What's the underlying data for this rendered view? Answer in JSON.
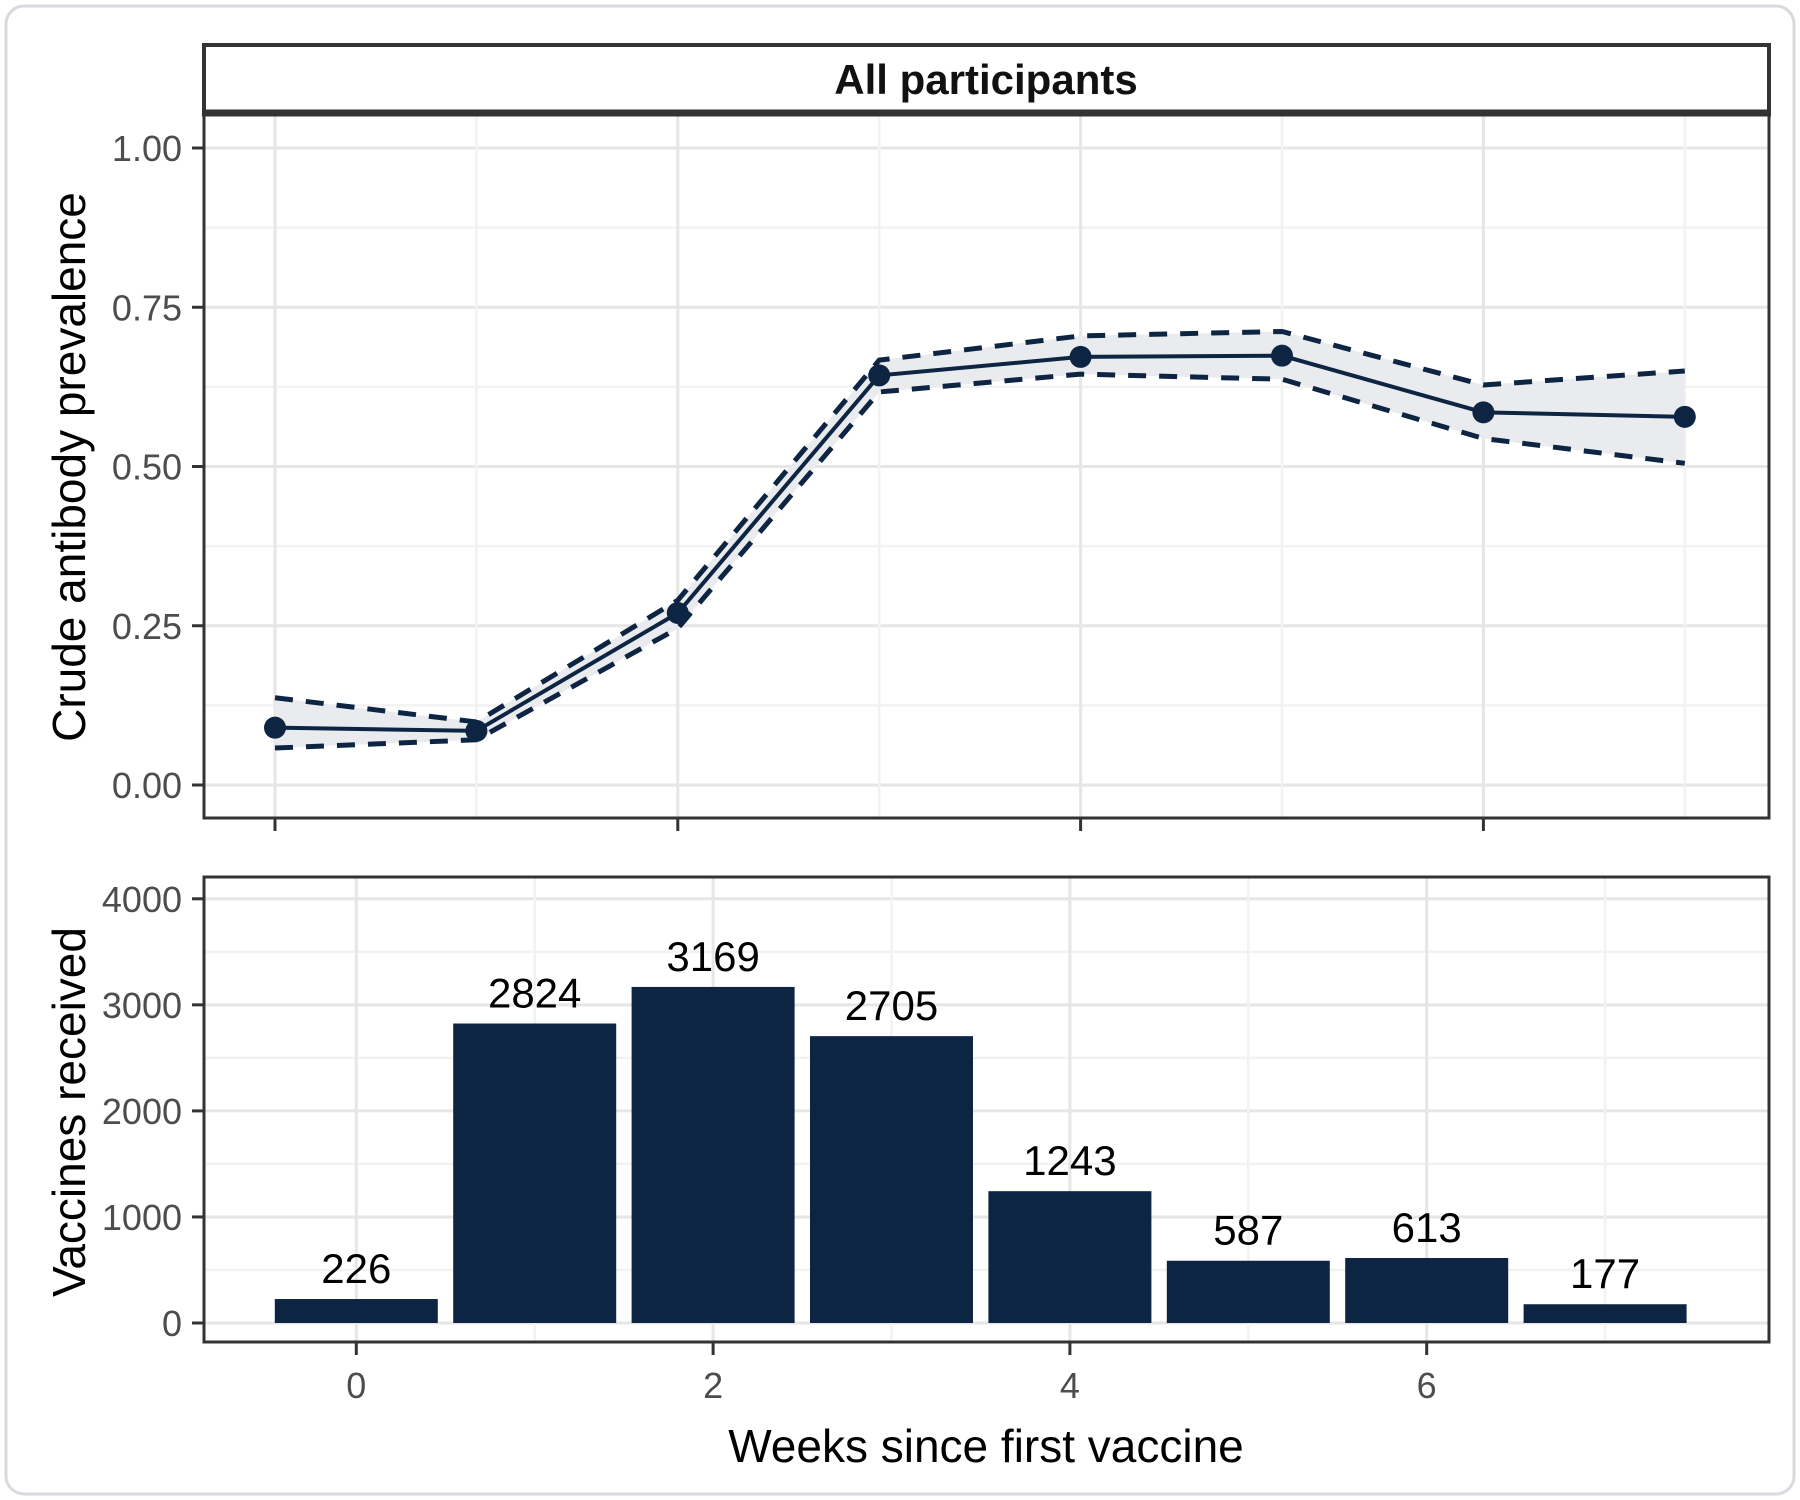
{
  "strip": {
    "label": "All participants"
  },
  "axes": {
    "x_title": "Weeks since first vaccine",
    "y_title_top": "Crude antibody prevalence",
    "y_title_bottom": "Vaccines received"
  },
  "colors": {
    "navy": "#0d2542",
    "ribbon": "#e9ebee",
    "grid_major": "#e6e6e6",
    "grid_minor": "#f2f2f2",
    "border": "#333333",
    "tick_label": "#4d4d4d",
    "text": "#000000",
    "card_border": "#d7dade",
    "background": "#ffffff"
  },
  "chart_data": [
    {
      "type": "line",
      "panel": "antibody-prevalence",
      "title": "All participants",
      "xlabel": "",
      "ylabel": "Crude antibody prevalence",
      "x": [
        0,
        1,
        2,
        3,
        4,
        5,
        6,
        7
      ],
      "series": [
        {
          "name": "Crude antibody prevalence",
          "values": [
            0.09,
            0.085,
            0.27,
            0.643,
            0.672,
            0.674,
            0.585,
            0.578
          ]
        }
      ],
      "ci_upper": [
        0.137,
        0.099,
        0.29,
        0.667,
        0.705,
        0.712,
        0.628,
        0.65
      ],
      "ci_lower": [
        0.058,
        0.071,
        0.246,
        0.617,
        0.645,
        0.637,
        0.544,
        0.505
      ],
      "xlim": [
        0,
        7
      ],
      "ylim": [
        0,
        1
      ],
      "yticks": [
        {
          "v": 1.0,
          "label": "1.00"
        },
        {
          "v": 0.75,
          "label": "0.75"
        },
        {
          "v": 0.5,
          "label": "0.50"
        },
        {
          "v": 0.25,
          "label": "0.25"
        },
        {
          "v": 0.0,
          "label": "0.00"
        }
      ],
      "yminor": [
        0.125,
        0.375,
        0.625,
        0.875
      ],
      "xticks_major": [
        0,
        2,
        4,
        6
      ],
      "xminor": [
        1,
        3,
        5,
        7
      ],
      "grid": true,
      "legend": "none",
      "marker": "point",
      "ci_style": "dashed"
    },
    {
      "type": "bar",
      "panel": "vaccines-received",
      "xlabel": "Weeks since first vaccine",
      "ylabel": "Vaccines received",
      "categories": [
        0,
        1,
        2,
        3,
        4,
        5,
        6,
        7
      ],
      "values": [
        226,
        2824,
        3169,
        2705,
        1243,
        587,
        613,
        177
      ],
      "bar_labels": [
        "226",
        "2824",
        "3169",
        "2705",
        "1243",
        "587",
        "613",
        "177"
      ],
      "ylim": [
        0,
        4000
      ],
      "yticks": [
        {
          "v": 4000,
          "label": "4000"
        },
        {
          "v": 3000,
          "label": "3000"
        },
        {
          "v": 2000,
          "label": "2000"
        },
        {
          "v": 1000,
          "label": "1000"
        },
        {
          "v": 0,
          "label": "0"
        }
      ],
      "yminor": [
        500,
        1500,
        2500,
        3500
      ],
      "xticks": [
        {
          "v": 0,
          "label": "0"
        },
        {
          "v": 2,
          "label": "2"
        },
        {
          "v": 4,
          "label": "4"
        },
        {
          "v": 6,
          "label": "6"
        }
      ],
      "xminor": [
        1,
        3,
        5,
        7
      ],
      "grid": true,
      "legend": "none"
    }
  ]
}
